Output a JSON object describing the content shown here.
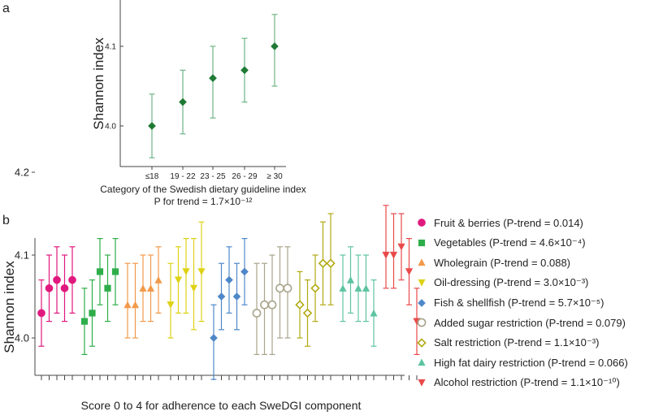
{
  "chart_data": [
    {
      "type": "scatter",
      "panel_label": "a",
      "title": "",
      "xlabel": "Category of the Swedish dietary guideline index",
      "ylabel": "Shannon index",
      "annotation": "P for trend = 1.7×10⁻¹²",
      "categories": [
        "≤18",
        "19 - 22",
        "23 - 25",
        "26 - 29",
        "≥ 30"
      ],
      "values": [
        4.0,
        4.03,
        4.06,
        4.07,
        4.1
      ],
      "ci_low": [
        3.96,
        3.99,
        4.01,
        4.03,
        4.05
      ],
      "ci_high": [
        4.04,
        4.07,
        4.1,
        4.11,
        4.14
      ],
      "yticks": [
        "4.0",
        "4.1"
      ],
      "ylim": [
        3.945,
        4.145
      ],
      "color": "#1e7a34",
      "error_color": "#6fb587"
    },
    {
      "type": "scatter",
      "panel_label": "b",
      "title": "",
      "xlabel": "Score 0 to 4 for adherence to each SweDGI component",
      "ylabel": "Shannon index",
      "yticks": [
        "4.0",
        "4.1",
        "4.2"
      ],
      "ylim": [
        3.955,
        4.205
      ],
      "series": [
        {
          "name": "Fruit & berries",
          "label": "Fruit & berries (P-trend = 0.014)",
          "marker": "circle",
          "color": "#e0197d",
          "values": [
            4.03,
            4.06,
            4.07,
            4.06,
            4.07
          ],
          "ci_low": [
            3.99,
            4.02,
            4.03,
            4.02,
            4.03
          ],
          "ci_high": [
            4.07,
            4.1,
            4.11,
            4.1,
            4.11
          ]
        },
        {
          "name": "Vegetables",
          "label": "Vegetables (P-trend = 4.6×10⁻⁴)",
          "marker": "square",
          "color": "#2eae4a",
          "values": [
            4.02,
            4.03,
            4.08,
            4.06,
            4.08
          ],
          "ci_low": [
            3.98,
            3.99,
            4.04,
            4.02,
            4.04
          ],
          "ci_high": [
            4.06,
            4.07,
            4.12,
            4.1,
            4.12
          ]
        },
        {
          "name": "Wholegrain",
          "label": "Wholegrain (P-trend = 0.088)",
          "marker": "triangle-up",
          "color": "#f2994a",
          "values": [
            4.04,
            4.04,
            4.06,
            4.06,
            4.07
          ],
          "ci_low": [
            4.0,
            4.0,
            4.02,
            4.02,
            4.03
          ],
          "ci_high": [
            4.09,
            4.09,
            4.1,
            4.1,
            4.11
          ]
        },
        {
          "name": "Oil-dressing",
          "label": "Oil-dressing (P-trend = 3.0×10⁻³)",
          "marker": "triangle-down",
          "color": "#ddd214",
          "values": [
            4.04,
            4.07,
            4.08,
            4.06,
            4.08
          ],
          "ci_low": [
            4.0,
            4.03,
            4.03,
            4.01,
            4.02
          ],
          "ci_high": [
            4.09,
            4.11,
            4.12,
            4.12,
            4.14
          ]
        },
        {
          "name": "Fish & shellfish",
          "label": "Fish & shellfish (P-trend = 5.7×10⁻⁵)",
          "marker": "diamond",
          "color": "#4f88c8",
          "values": [
            4.0,
            4.05,
            4.07,
            4.05,
            4.08
          ],
          "ci_low": [
            3.95,
            4.01,
            4.03,
            4.01,
            4.04
          ],
          "ci_high": [
            4.04,
            4.09,
            4.11,
            4.09,
            4.12
          ]
        },
        {
          "name": "Added sugar restriction",
          "label": "Added sugar restriction (P-trend = 0.079)",
          "marker": "circle-open",
          "color": "#a8a48a",
          "values": [
            4.03,
            4.04,
            4.04,
            4.06,
            4.06
          ],
          "ci_low": [
            3.98,
            3.98,
            3.98,
            4.0,
            4.0
          ],
          "ci_high": [
            4.09,
            4.09,
            4.1,
            4.11,
            4.11
          ]
        },
        {
          "name": "Salt restriction",
          "label": "Salt restriction (P-trend = 1.1×10⁻³)",
          "marker": "diamond-open",
          "color": "#b1a910",
          "values": [
            4.04,
            4.03,
            4.06,
            4.09,
            4.09
          ],
          "ci_low": [
            4.0,
            3.99,
            4.02,
            4.04,
            4.04
          ],
          "ci_high": [
            4.08,
            4.07,
            4.1,
            4.14,
            4.15
          ]
        },
        {
          "name": "High fat dairy restriction",
          "label": "High fat dairy restriction (P-trend = 0.066)",
          "marker": "triangle-up",
          "color": "#5ec4a0",
          "values": [
            4.06,
            4.07,
            4.06,
            4.06,
            4.03
          ],
          "ci_low": [
            4.02,
            4.03,
            4.02,
            4.02,
            3.99
          ],
          "ci_high": [
            4.1,
            4.11,
            4.1,
            4.1,
            4.07
          ]
        },
        {
          "name": "Alcohol restriction",
          "label": "Alcohol restriction (P-trend = 1.1×10⁻¹⁰)",
          "marker": "triangle-down",
          "color": "#ea4a4a",
          "values": [
            4.1,
            4.1,
            4.11,
            4.08,
            4.02
          ],
          "ci_low": [
            4.06,
            4.06,
            4.07,
            4.04,
            3.98
          ],
          "ci_high": [
            4.16,
            4.15,
            4.15,
            4.12,
            4.06
          ]
        }
      ]
    }
  ]
}
